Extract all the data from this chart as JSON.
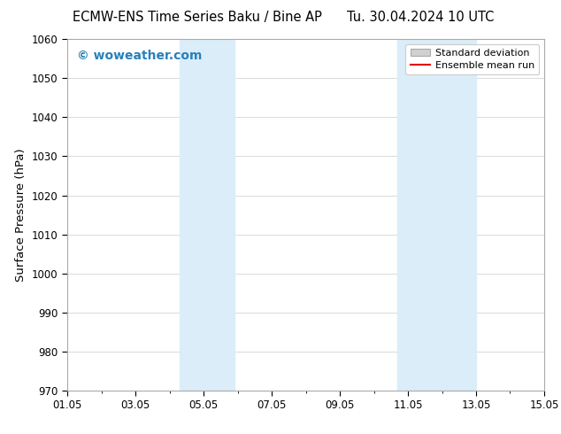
{
  "title": "ECMW-ENS Time Series Baku / Bine AP       Tu. 30.04.2024 10 UTC",
  "title_left": "ECMW-ENS Time Series Baku / Bine AP",
  "title_right": "Tu. 30.04.2024 10 UTC",
  "ylabel": "Surface Pressure (hPa)",
  "ylim": [
    970,
    1060
  ],
  "yticks": [
    970,
    980,
    990,
    1000,
    1010,
    1020,
    1030,
    1040,
    1050,
    1060
  ],
  "xlim": [
    1,
    15
  ],
  "xtick_labels": [
    "01.05",
    "03.05",
    "05.05",
    "07.05",
    "09.05",
    "11.05",
    "13.05",
    "15.05"
  ],
  "xtick_positions": [
    1,
    3,
    5,
    7,
    9,
    11,
    13,
    15
  ],
  "shade_bands": [
    {
      "x_start": 4.3,
      "x_end": 5.9
    },
    {
      "x_start": 10.7,
      "x_end": 13.0
    }
  ],
  "shade_color": "#daedf8",
  "watermark_text": "© woweather.com",
  "watermark_color": "#2980b9",
  "legend_std_label": "Standard deviation",
  "legend_mean_label": "Ensemble mean run",
  "legend_std_facecolor": "#d0d0d0",
  "legend_std_edgecolor": "#aaaaaa",
  "legend_mean_color": "#dd0000",
  "background_color": "#ffffff",
  "plot_bg_color": "#ffffff",
  "grid_color": "#cccccc",
  "spine_color": "#aaaaaa",
  "title_fontsize": 10.5,
  "ylabel_fontsize": 9.5,
  "tick_fontsize": 8.5,
  "watermark_fontsize": 10,
  "legend_fontsize": 8
}
